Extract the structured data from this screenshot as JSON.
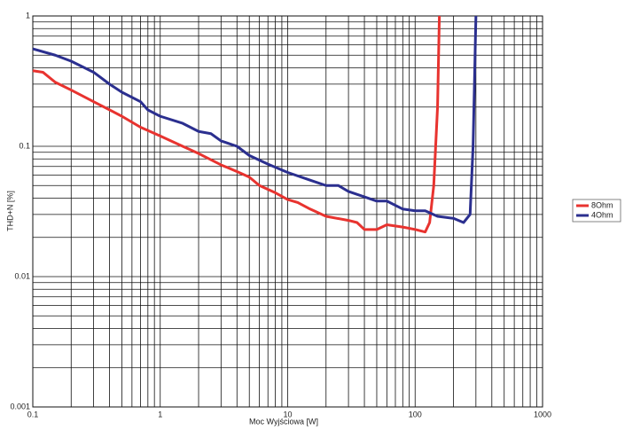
{
  "chart_data": {
    "type": "line",
    "x_label": "Moc Wyjściowa [W]",
    "y_label": "THD+N [%]",
    "xscale": "log",
    "yscale": "log",
    "grid": true,
    "legend": "right",
    "xlim": [
      0.1,
      1000
    ],
    "xticks": [
      0.1,
      1,
      10,
      100,
      1000
    ],
    "ylim": [
      0.001,
      1
    ],
    "yticks": [
      0.001,
      0.01,
      0.1,
      1
    ],
    "series": [
      {
        "name": "8Ohm",
        "color": "#e8332f",
        "x": [
          0.1,
          0.12,
          0.15,
          0.2,
          0.3,
          0.5,
          0.7,
          1,
          1.5,
          2,
          3,
          4,
          5,
          6,
          8,
          10,
          12,
          15,
          20,
          30,
          35,
          40,
          50,
          60,
          80,
          100,
          120,
          130,
          140,
          150,
          155
        ],
        "values": [
          0.38,
          0.37,
          0.31,
          0.27,
          0.22,
          0.17,
          0.14,
          0.12,
          0.1,
          0.088,
          0.072,
          0.064,
          0.058,
          0.05,
          0.044,
          0.039,
          0.037,
          0.033,
          0.029,
          0.027,
          0.026,
          0.023,
          0.023,
          0.025,
          0.024,
          0.023,
          0.022,
          0.026,
          0.05,
          0.2,
          1
        ]
      },
      {
        "name": "4Ohm",
        "color": "#2b2f8f",
        "x": [
          0.1,
          0.15,
          0.2,
          0.3,
          0.4,
          0.5,
          0.7,
          0.8,
          1,
          1.5,
          2,
          2.5,
          3,
          4,
          5,
          7,
          10,
          15,
          20,
          25,
          30,
          50,
          60,
          80,
          100,
          120,
          150,
          200,
          240,
          270,
          285,
          300
        ],
        "values": [
          0.56,
          0.5,
          0.45,
          0.37,
          0.3,
          0.26,
          0.22,
          0.19,
          0.17,
          0.15,
          0.13,
          0.125,
          0.11,
          0.1,
          0.085,
          0.073,
          0.063,
          0.055,
          0.05,
          0.05,
          0.045,
          0.038,
          0.038,
          0.033,
          0.032,
          0.032,
          0.029,
          0.028,
          0.026,
          0.03,
          0.1,
          1
        ]
      }
    ]
  }
}
